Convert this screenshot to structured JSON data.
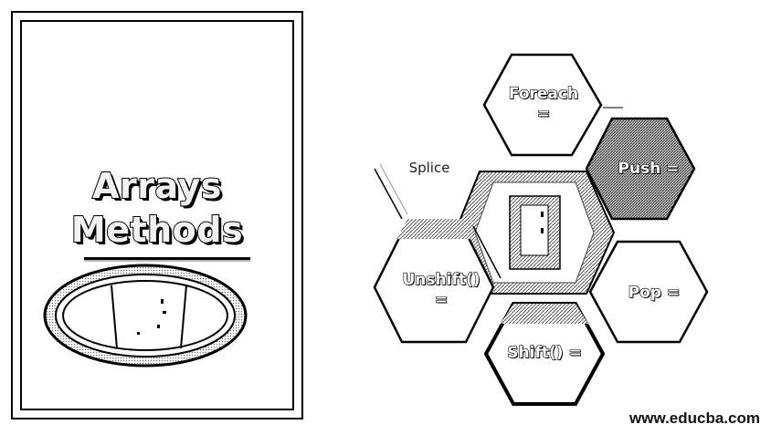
{
  "title": {
    "line1": "Arrays",
    "line2": "Methods"
  },
  "methods": {
    "foreach": "Foreach\n=",
    "push": "Push =",
    "splice": "Splice",
    "unshift": "Unshift()\n=",
    "pop": "Pop =",
    "shift": "Shift() ="
  },
  "footer": {
    "url": "www.educba.com"
  },
  "colors": {
    "ink": "#000000",
    "paper": "#ffffff",
    "shade": "#9a9a9a"
  }
}
